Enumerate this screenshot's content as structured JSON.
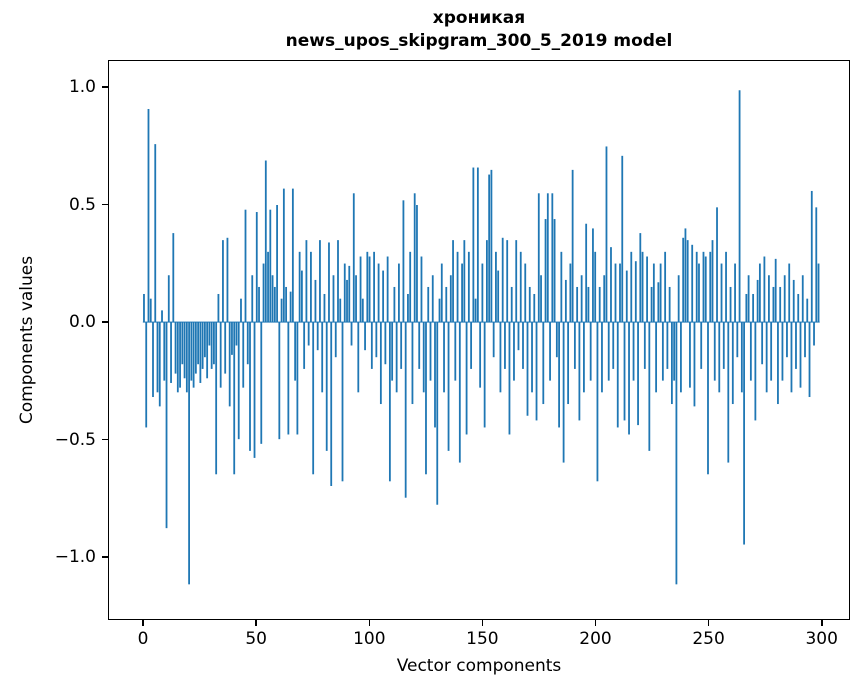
{
  "figure": {
    "title_line1": "хроникая",
    "title_line2": "news_upos_skipgram_300_5_2019 model",
    "xlabel": "Vector components",
    "ylabel": "Components values"
  },
  "chart_data": {
    "type": "bar",
    "title": "хроникая — news_upos_skipgram_300_5_2019 model",
    "xlabel": "Vector components",
    "ylabel": "Components values",
    "bar_color": "#1f77b4",
    "grid": false,
    "legend": "none",
    "xlim": [
      -15.5,
      312.5
    ],
    "ylim": [
      -1.268,
      1.115
    ],
    "xticks": [
      0,
      50,
      100,
      150,
      200,
      250,
      300
    ],
    "xtick_labels": [
      "0",
      "50",
      "100",
      "150",
      "200",
      "250",
      "300"
    ],
    "yticks": [
      1.0,
      0.5,
      0.0,
      -0.5,
      -1.0
    ],
    "ytick_labels": [
      "1.0",
      "0.5",
      "0.0",
      "−0.5",
      "−1.0"
    ],
    "x_start": 0,
    "bar_width": 0.8,
    "values": [
      0.12,
      -0.45,
      0.91,
      0.1,
      -0.32,
      0.76,
      -0.3,
      -0.36,
      0.05,
      -0.25,
      -0.88,
      0.2,
      -0.26,
      0.38,
      -0.22,
      -0.3,
      -0.28,
      -0.18,
      -0.24,
      -0.3,
      -1.12,
      -0.25,
      -0.28,
      -0.22,
      -0.18,
      -0.26,
      -0.2,
      -0.15,
      -0.24,
      -0.1,
      -0.2,
      -0.18,
      -0.65,
      0.12,
      -0.28,
      0.35,
      -0.22,
      0.36,
      -0.36,
      -0.14,
      -0.65,
      -0.1,
      -0.5,
      0.1,
      -0.28,
      0.48,
      -0.18,
      -0.55,
      0.2,
      -0.58,
      0.47,
      0.15,
      -0.52,
      0.25,
      0.69,
      0.3,
      0.48,
      0.2,
      0.15,
      0.5,
      -0.5,
      0.1,
      0.57,
      0.15,
      -0.48,
      0.13,
      0.57,
      -0.25,
      -0.48,
      0.3,
      0.22,
      -0.2,
      0.35,
      -0.1,
      0.3,
      -0.65,
      0.18,
      -0.12,
      0.35,
      -0.3,
      0.12,
      -0.55,
      0.34,
      -0.7,
      0.2,
      -0.15,
      0.35,
      0.1,
      -0.68,
      0.25,
      0.18,
      0.24,
      -0.1,
      0.55,
      0.2,
      -0.3,
      0.28,
      0.1,
      -0.12,
      0.3,
      0.28,
      -0.2,
      0.3,
      -0.15,
      0.25,
      -0.35,
      0.22,
      -0.18,
      0.28,
      -0.68,
      -0.25,
      0.15,
      -0.3,
      0.25,
      -0.2,
      0.52,
      -0.75,
      0.12,
      0.3,
      -0.35,
      0.55,
      0.5,
      -0.2,
      0.28,
      -0.3,
      -0.65,
      0.15,
      -0.25,
      0.2,
      -0.45,
      -0.78,
      0.1,
      0.25,
      -0.3,
      0.15,
      -0.55,
      0.2,
      0.35,
      -0.25,
      0.3,
      -0.6,
      0.25,
      0.35,
      -0.48,
      0.3,
      -0.2,
      0.66,
      0.1,
      0.66,
      -0.28,
      0.25,
      -0.45,
      0.35,
      0.63,
      0.65,
      -0.15,
      0.3,
      0.22,
      -0.3,
      0.36,
      -0.2,
      0.35,
      -0.48,
      0.15,
      -0.25,
      0.35,
      -0.12,
      0.3,
      -0.2,
      0.25,
      -0.4,
      0.15,
      -0.3,
      0.12,
      -0.42,
      0.55,
      0.2,
      -0.35,
      0.44,
      0.55,
      -0.25,
      0.55,
      0.44,
      -0.15,
      -0.45,
      0.3,
      -0.6,
      0.18,
      -0.35,
      0.25,
      0.65,
      -0.2,
      0.15,
      -0.42,
      0.2,
      -0.3,
      0.42,
      0.15,
      -0.25,
      0.4,
      0.3,
      -0.68,
      0.15,
      -0.3,
      0.2,
      0.75,
      -0.25,
      0.32,
      -0.2,
      0.25,
      -0.45,
      0.25,
      0.71,
      -0.42,
      0.22,
      -0.48,
      0.3,
      -0.25,
      0.26,
      -0.44,
      0.38,
      0.3,
      -0.2,
      0.28,
      -0.55,
      0.15,
      0.25,
      -0.3,
      0.17,
      0.25,
      -0.25,
      0.3,
      -0.2,
      0.15,
      -0.35,
      -0.25,
      -1.12,
      0.2,
      -0.3,
      0.36,
      0.4,
      0.35,
      -0.28,
      0.33,
      -0.36,
      0.3,
      0.25,
      -0.2,
      0.3,
      0.28,
      -0.65,
      0.3,
      0.35,
      -0.25,
      0.49,
      -0.3,
      0.25,
      -0.2,
      0.3,
      -0.6,
      0.15,
      -0.35,
      0.25,
      -0.15,
      0.99,
      -0.3,
      -0.95,
      0.12,
      0.2,
      -0.25,
      0.12,
      -0.42,
      0.18,
      0.25,
      -0.18,
      0.28,
      -0.3,
      0.2,
      -0.25,
      0.15,
      0.27,
      -0.35,
      0.15,
      -0.25,
      0.2,
      -0.15,
      0.25,
      -0.3,
      0.18,
      -0.2,
      0.12,
      -0.28,
      0.2,
      -0.15,
      0.1,
      -0.32,
      0.56,
      -0.1,
      0.49,
      0.25
    ]
  }
}
